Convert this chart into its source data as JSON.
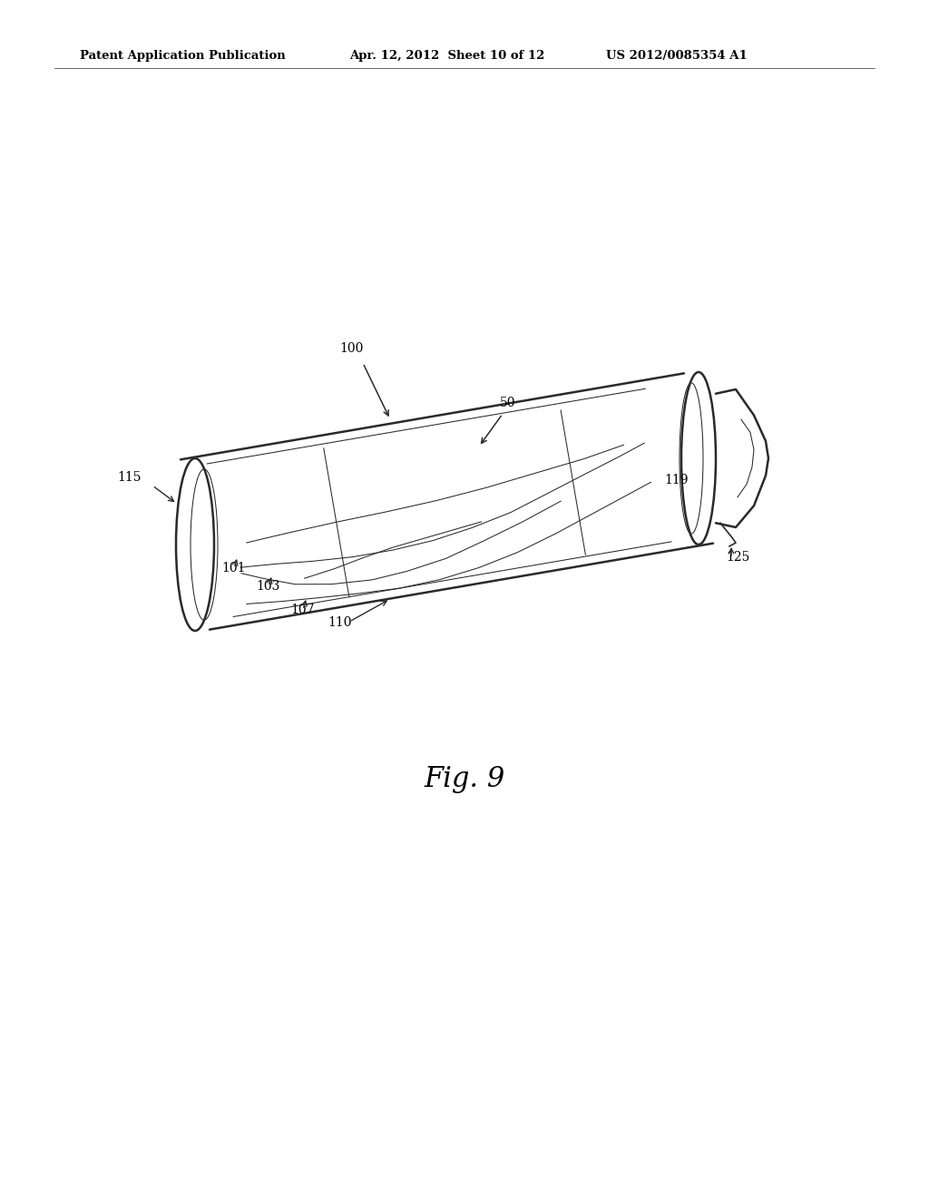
{
  "header_left": "Patent Application Publication",
  "header_center": "Apr. 12, 2012  Sheet 10 of 12",
  "header_right": "US 2012/0085354 A1",
  "fig_label": "Fig. 9",
  "background_color": "#ffffff",
  "line_color": "#2a2a2a",
  "text_color": "#000000",
  "lw_main": 1.8,
  "lw_med": 1.2,
  "lw_thin": 0.75,
  "fig_fontsize": 22
}
